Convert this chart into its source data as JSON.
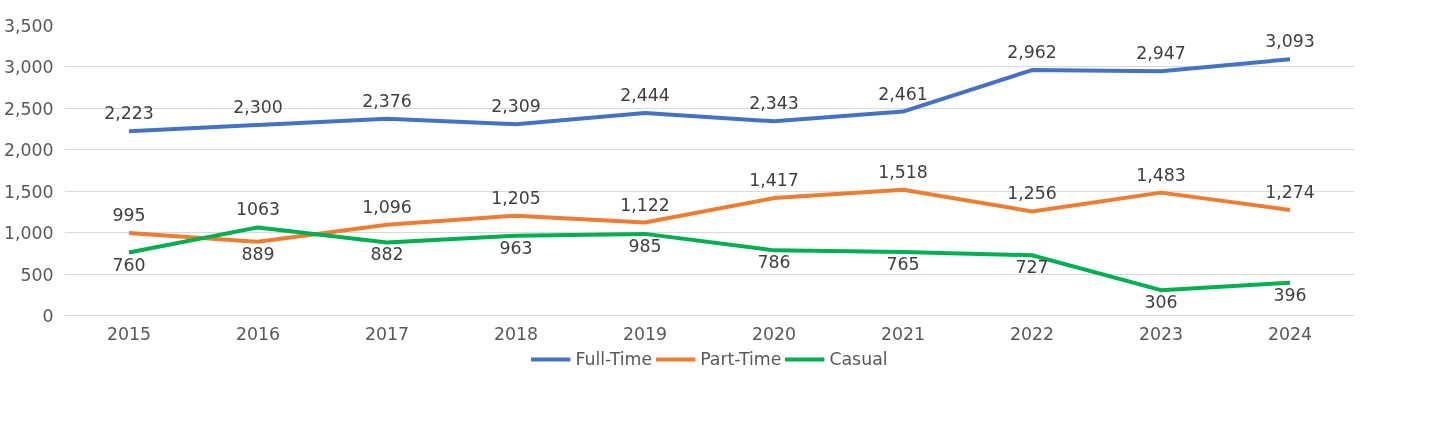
{
  "chart_data": {
    "type": "line",
    "categories": [
      "2015",
      "2016",
      "2017",
      "2018",
      "2019",
      "2020",
      "2021",
      "2022",
      "2023",
      "2024"
    ],
    "series": [
      {
        "name": "Full-Time",
        "color": "#4472c4",
        "values": [
          2223,
          2300,
          2376,
          2309,
          2444,
          2343,
          2461,
          2962,
          2947,
          3093
        ],
        "value_labels": [
          "2,223",
          "2,300",
          "2,376",
          "2,309",
          "2,444",
          "2,343",
          "2,461",
          "2,962",
          "2,947",
          "3,093"
        ]
      },
      {
        "name": "Part-Time",
        "color": "#ed7d31",
        "values": [
          995,
          889,
          1096,
          1205,
          1122,
          1417,
          1518,
          1256,
          1483,
          1274
        ],
        "value_labels": [
          "995",
          "889",
          "1,096",
          "1,205",
          "1,122",
          "1,417",
          "1,518",
          "1,256",
          "1,483",
          "1,274"
        ]
      },
      {
        "name": "Casual",
        "color": "#00b050",
        "values": [
          760,
          1063,
          882,
          963,
          985,
          786,
          765,
          727,
          306,
          396
        ],
        "value_labels": [
          "760",
          "1063",
          "882",
          "963",
          "985",
          "786",
          "765",
          "727",
          "306",
          "396"
        ]
      }
    ],
    "ylim": [
      0,
      3500
    ],
    "yticks": [
      {
        "value": 0,
        "label": "0"
      },
      {
        "value": 500,
        "label": "500"
      },
      {
        "value": 1000,
        "label": "1,000"
      },
      {
        "value": 1500,
        "label": "1,500"
      },
      {
        "value": 2000,
        "label": "2,000"
      },
      {
        "value": 2500,
        "label": "2,500"
      },
      {
        "value": 3000,
        "label": "3,000"
      },
      {
        "value": 3500,
        "label": "3,500"
      }
    ],
    "grid": "y",
    "legend": "bottom",
    "marker": "none",
    "line_style": "solid"
  }
}
